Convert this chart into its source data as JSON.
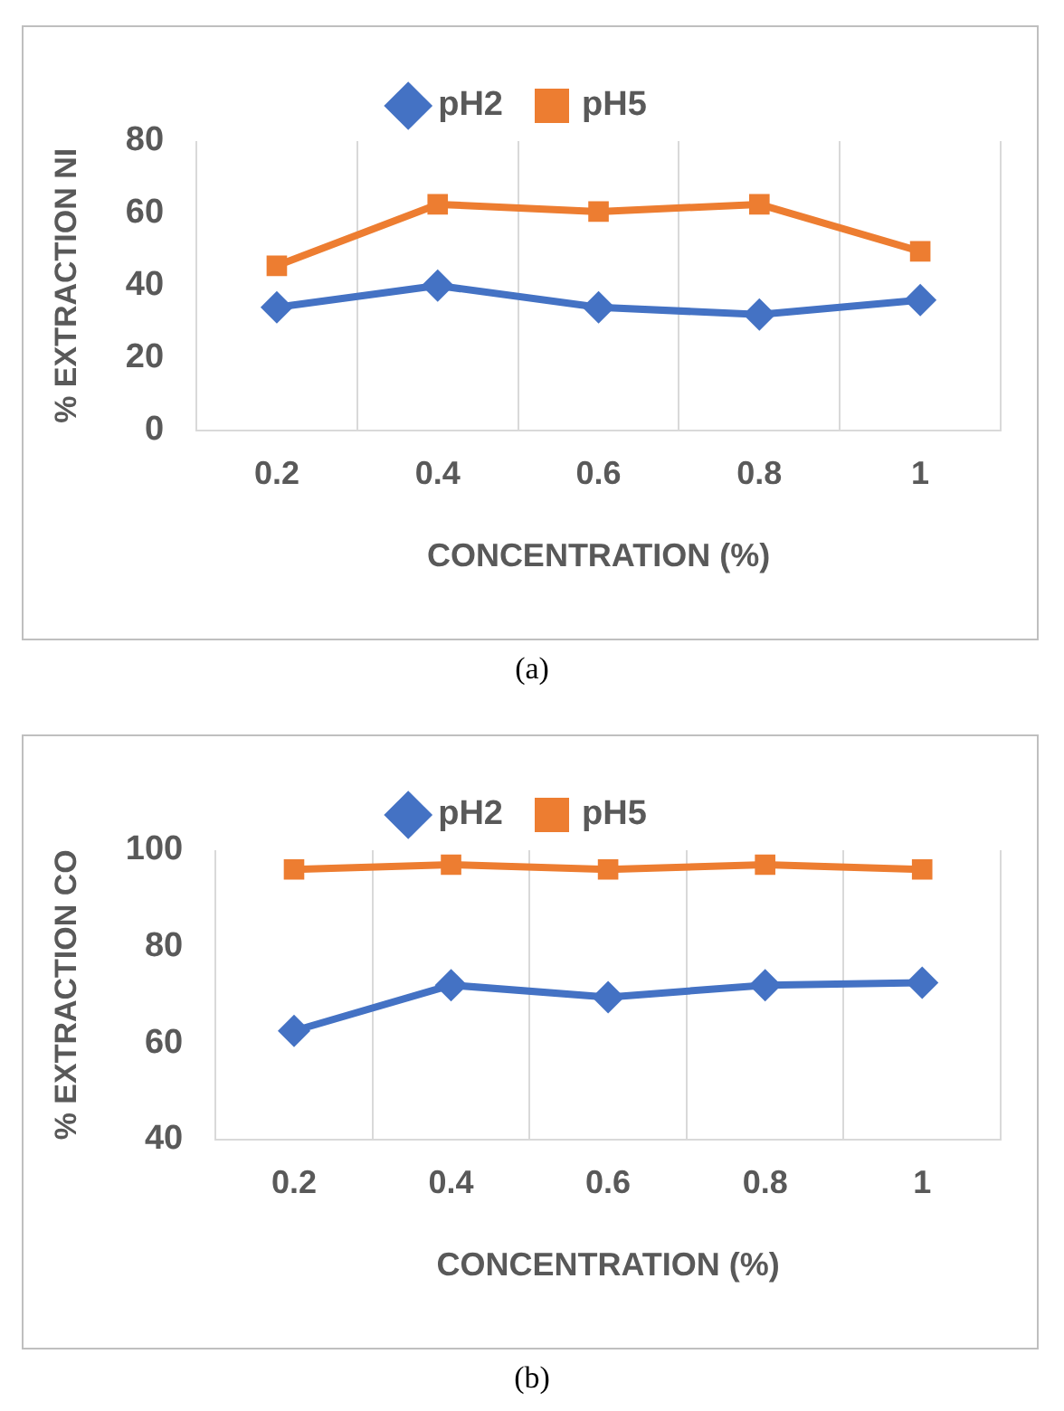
{
  "chart_data": [
    {
      "type": "line",
      "ylabel": "% EXTRACTION NI",
      "xlabel": "CONCENTRATION (%)",
      "categories": [
        "0.2",
        "0.4",
        "0.6",
        "0.8",
        "1"
      ],
      "ylim": [
        0,
        80
      ],
      "yticks": [
        0,
        20,
        40,
        60,
        80
      ],
      "grid": "x",
      "legend": "top",
      "annotations": [
        "(a)"
      ],
      "series": [
        {
          "name": "pH2",
          "color": "#4472c4",
          "marker": "diamond",
          "values": [
            34,
            40,
            34,
            32,
            36
          ]
        },
        {
          "name": "pH5",
          "color": "#ed7d31",
          "marker": "square",
          "values": [
            45.5,
            62.5,
            60.5,
            62.5,
            49.5
          ]
        }
      ]
    },
    {
      "type": "line",
      "ylabel": "% EXTRACTION CO",
      "xlabel": "CONCENTRATION (%)",
      "categories": [
        "0.2",
        "0.4",
        "0.6",
        "0.8",
        "1"
      ],
      "ylim": [
        40,
        100
      ],
      "yticks": [
        40,
        60,
        80,
        100
      ],
      "grid": "x",
      "legend": "top",
      "annotations": [
        "(b)"
      ],
      "series": [
        {
          "name": "pH2",
          "color": "#4472c4",
          "marker": "diamond",
          "values": [
            62.5,
            72,
            69.5,
            72,
            72.5
          ]
        },
        {
          "name": "pH5",
          "color": "#ed7d31",
          "marker": "square",
          "values": [
            96,
            97,
            96,
            97,
            96
          ]
        }
      ]
    }
  ]
}
